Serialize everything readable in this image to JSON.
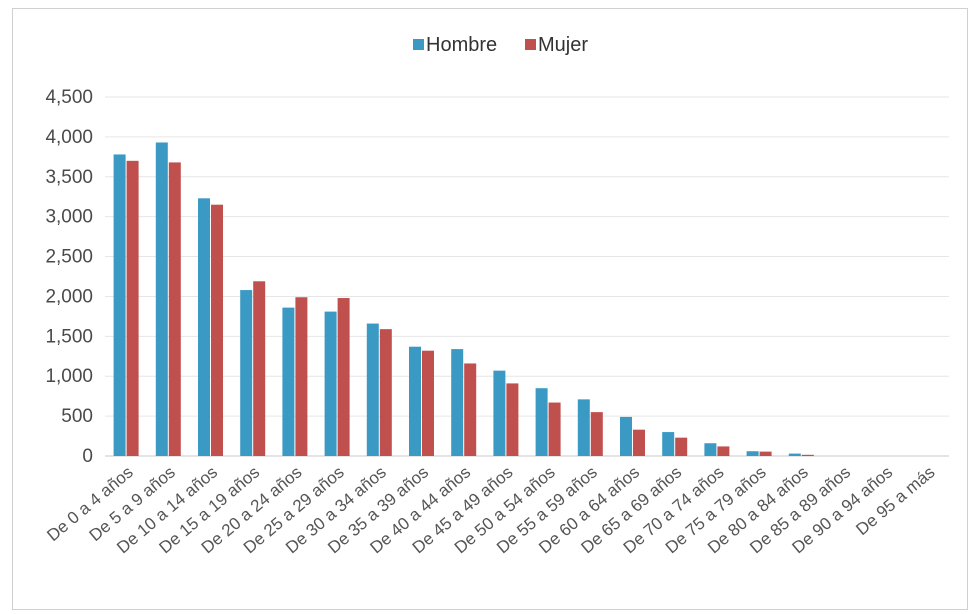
{
  "chart_data": {
    "type": "bar",
    "title": "",
    "xlabel": "",
    "ylabel": "",
    "ylim": [
      0,
      4500
    ],
    "yticks": [
      0,
      500,
      1000,
      1500,
      2000,
      2500,
      3000,
      3500,
      4000,
      4500
    ],
    "ytick_labels": [
      "0",
      "500",
      "1,000",
      "1,500",
      "2,000",
      "2,500",
      "3,000",
      "3,500",
      "4,000",
      "4,500"
    ],
    "grid": true,
    "legend_position": "top-center",
    "categories": [
      "De 0  a 4 años",
      "De 5  a 9 años",
      "De 10 a 14 años",
      "De 15 a 19 años",
      "De 20 a 24 años",
      "De 25 a 29 años",
      "De 30 a 34 años",
      "De 35 a 39 años",
      "De 40 a 44 años",
      "De 45 a 49 años",
      "De 50 a 54 años",
      "De 55 a 59 años",
      "De 60 a 64 años",
      "De 65 a 69 años",
      "De 70 a 74 años",
      "De 75 a 79 años",
      "De 80 a 84 años",
      "De 85 a 89 años",
      "De 90 a 94 años",
      "De 95 a más"
    ],
    "series": [
      {
        "name": "Hombre",
        "color": "#3a9ac4",
        "values": [
          3780,
          3930,
          3230,
          2080,
          1860,
          1810,
          1660,
          1370,
          1340,
          1070,
          850,
          710,
          490,
          300,
          160,
          60,
          30,
          0,
          0,
          0
        ]
      },
      {
        "name": "Mujer",
        "color": "#c0504d",
        "values": [
          3700,
          3680,
          3150,
          2190,
          1990,
          1980,
          1590,
          1320,
          1160,
          910,
          670,
          550,
          330,
          230,
          120,
          55,
          15,
          0,
          0,
          0
        ]
      }
    ]
  }
}
